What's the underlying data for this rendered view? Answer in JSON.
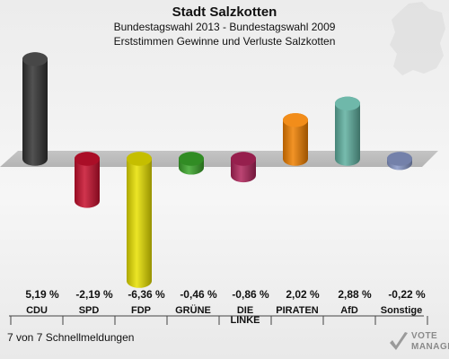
{
  "header": {
    "title": "Stadt Salzkotten",
    "subtitle": "Bundestagswahl 2013 - Bundestagswahl 2009",
    "subtitle2": "Erststimmen Gewinne und Verluste Salzkotten"
  },
  "footer": {
    "text": "7 von 7 Schnellmeldungen"
  },
  "brand": {
    "line1": "VOTE",
    "line2": "MANAGER"
  },
  "chart_data": {
    "type": "bar",
    "title": "Stadt Salzkotten",
    "categories": [
      "CDU",
      "SPD",
      "FDP",
      "GRÜNE",
      "DIE LINKE",
      "PIRATEN",
      "AfD",
      "Sonstige"
    ],
    "category_lines": [
      [
        "CDU"
      ],
      [
        "SPD"
      ],
      [
        "FDP"
      ],
      [
        "GRÜNE"
      ],
      [
        "DIE",
        "LINKE"
      ],
      [
        "PIRATEN"
      ],
      [
        "AfD"
      ],
      [
        "Sonstige"
      ]
    ],
    "values": [
      5.19,
      -2.19,
      -6.36,
      -0.46,
      -0.86,
      2.02,
      2.88,
      -0.22
    ],
    "value_labels": [
      "5,19 %",
      "-2,19 %",
      "-6,36 %",
      "-0,46 %",
      "-0,86 %",
      "2,02 %",
      "2,88 %",
      "-0,22 %"
    ],
    "colors": [
      "#333333",
      "#c8102e",
      "#e8e000",
      "#3aa52a",
      "#b0245a",
      "#f08000",
      "#5fb0a0",
      "#8898c8"
    ],
    "ylim": [
      -6.36,
      5.19
    ],
    "legend": "none",
    "grid": false
  }
}
